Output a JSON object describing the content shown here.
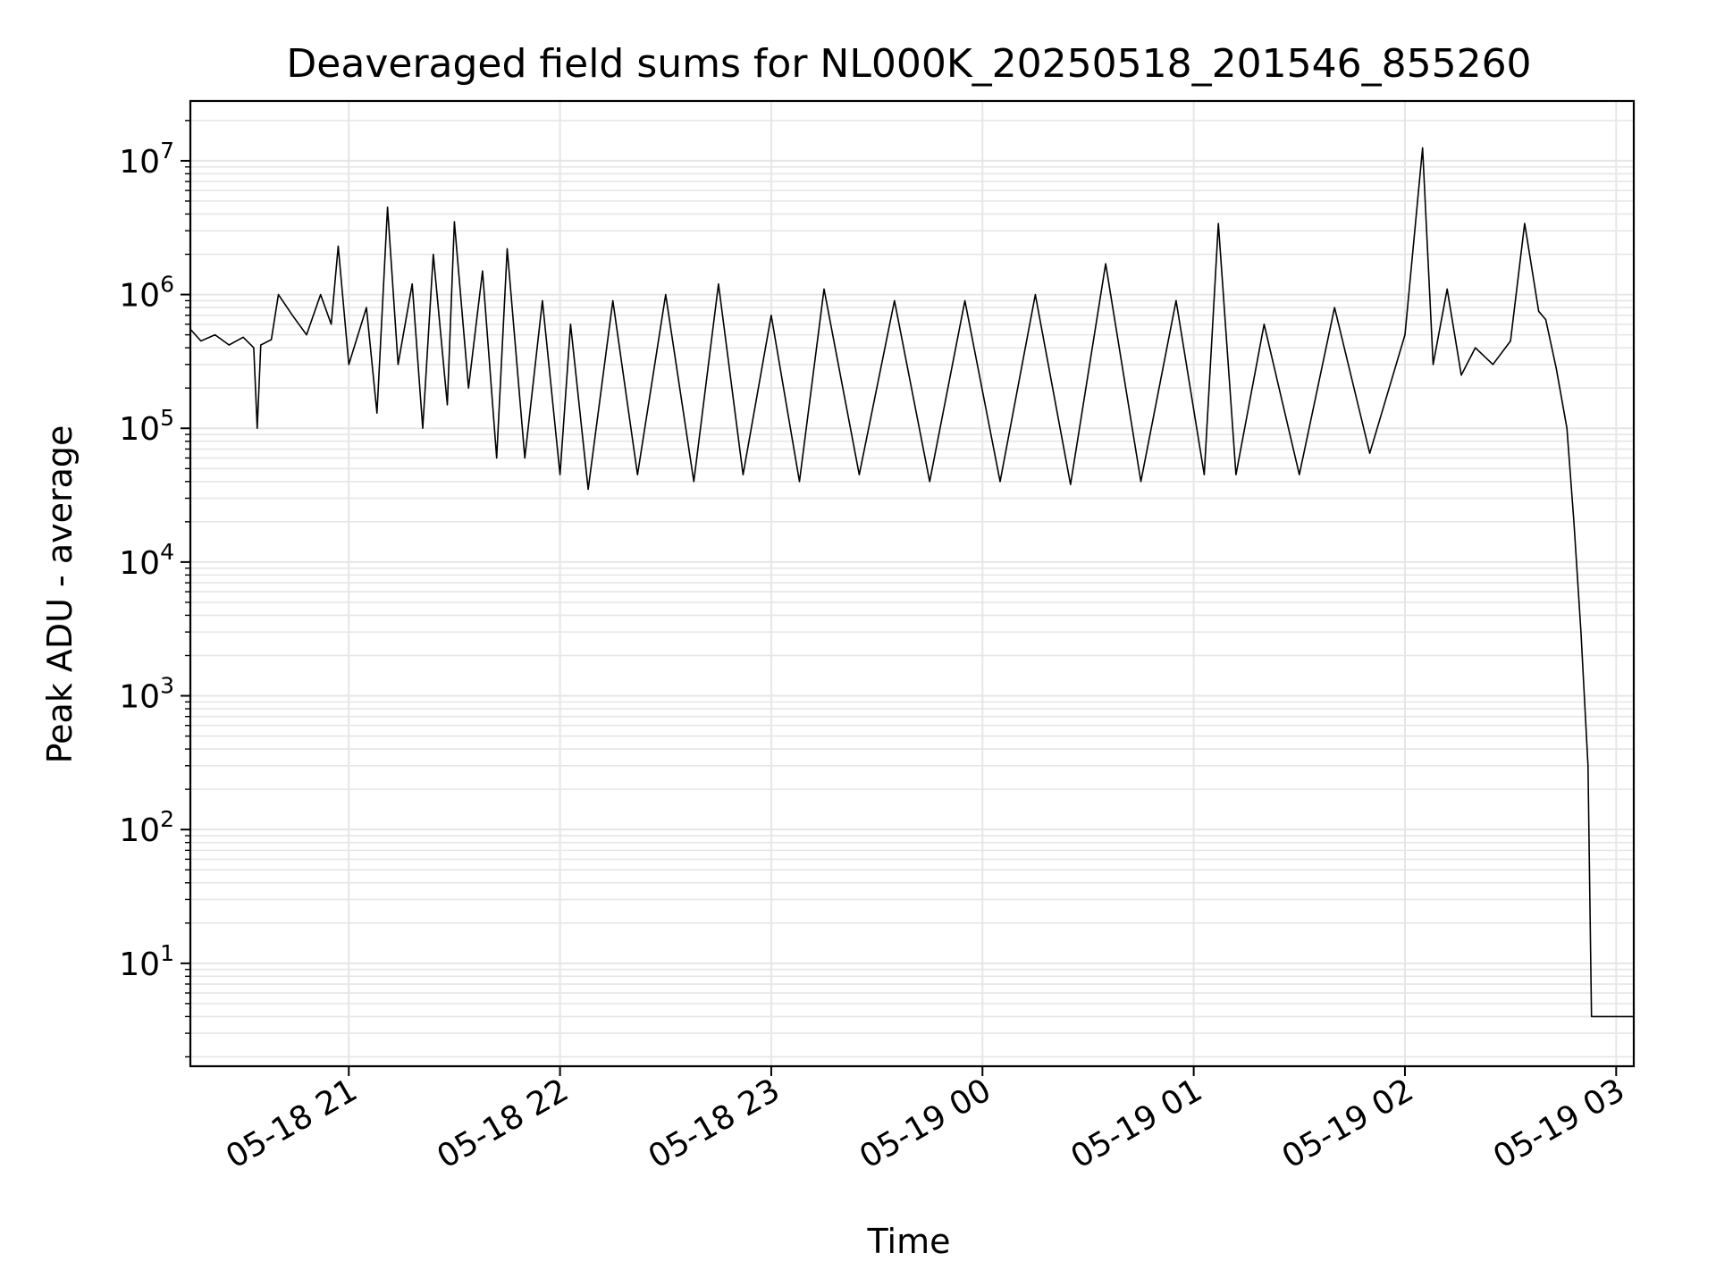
{
  "chart_data": {
    "type": "line",
    "title": "Deaveraged field sums for NL000K_20250518_201546_855260",
    "xlabel": "Time",
    "ylabel": "Peak ADU - average",
    "yscale": "log",
    "ylim": [
      1.7,
      28000000.0
    ],
    "xlim": [
      "2025-05-18 20:15",
      "2025-05-19 03:05"
    ],
    "grid": true,
    "line_color": "#000000",
    "grid_color": "#e6e6e6",
    "x_ticks": [
      {
        "t": "2025-05-18 21:00",
        "label": "05-18 21"
      },
      {
        "t": "2025-05-18 22:00",
        "label": "05-18 22"
      },
      {
        "t": "2025-05-18 23:00",
        "label": "05-18 23"
      },
      {
        "t": "2025-05-19 00:00",
        "label": "05-19 00"
      },
      {
        "t": "2025-05-19 01:00",
        "label": "05-19 01"
      },
      {
        "t": "2025-05-19 02:00",
        "label": "05-19 02"
      },
      {
        "t": "2025-05-19 03:00",
        "label": "05-19 03"
      }
    ],
    "y_ticks": [
      {
        "value": 10,
        "base": "10",
        "exp": "1"
      },
      {
        "value": 100,
        "base": "10",
        "exp": "2"
      },
      {
        "value": 1000,
        "base": "10",
        "exp": "3"
      },
      {
        "value": 10000,
        "base": "10",
        "exp": "4"
      },
      {
        "value": 100000,
        "base": "10",
        "exp": "5"
      },
      {
        "value": 1000000,
        "base": "10",
        "exp": "6"
      },
      {
        "value": 10000000,
        "base": "10",
        "exp": "7"
      }
    ],
    "series": [
      {
        "points": [
          [
            "2025-05-18 20:15",
            550000
          ],
          [
            "2025-05-18 20:18",
            450000
          ],
          [
            "2025-05-18 20:22",
            500000
          ],
          [
            "2025-05-18 20:26",
            420000
          ],
          [
            "2025-05-18 20:30",
            480000
          ],
          [
            "2025-05-18 20:33",
            400000
          ],
          [
            "2025-05-18 20:34",
            100000
          ],
          [
            "2025-05-18 20:35",
            420000
          ],
          [
            "2025-05-18 20:38",
            460000
          ],
          [
            "2025-05-18 20:40",
            1000000
          ],
          [
            "2025-05-18 20:44",
            700000
          ],
          [
            "2025-05-18 20:48",
            500000
          ],
          [
            "2025-05-18 20:52",
            1000000
          ],
          [
            "2025-05-18 20:55",
            600000
          ],
          [
            "2025-05-18 20:57",
            2300000
          ],
          [
            "2025-05-18 21:00",
            300000
          ],
          [
            "2025-05-18 21:05",
            800000
          ],
          [
            "2025-05-18 21:08",
            130000
          ],
          [
            "2025-05-18 21:11",
            4500000
          ],
          [
            "2025-05-18 21:14",
            300000
          ],
          [
            "2025-05-18 21:18",
            1200000
          ],
          [
            "2025-05-18 21:21",
            100000
          ],
          [
            "2025-05-18 21:24",
            2000000
          ],
          [
            "2025-05-18 21:28",
            150000
          ],
          [
            "2025-05-18 21:30",
            3500000
          ],
          [
            "2025-05-18 21:34",
            200000
          ],
          [
            "2025-05-18 21:38",
            1500000
          ],
          [
            "2025-05-18 21:42",
            60000
          ],
          [
            "2025-05-18 21:45",
            2200000
          ],
          [
            "2025-05-18 21:50",
            60000
          ],
          [
            "2025-05-18 21:55",
            900000
          ],
          [
            "2025-05-18 22:00",
            45000
          ],
          [
            "2025-05-18 22:03",
            600000
          ],
          [
            "2025-05-18 22:08",
            35000
          ],
          [
            "2025-05-18 22:15",
            900000
          ],
          [
            "2025-05-18 22:22",
            45000
          ],
          [
            "2025-05-18 22:30",
            1000000
          ],
          [
            "2025-05-18 22:38",
            40000
          ],
          [
            "2025-05-18 22:45",
            1200000
          ],
          [
            "2025-05-18 22:52",
            45000
          ],
          [
            "2025-05-18 23:00",
            700000
          ],
          [
            "2025-05-18 23:08",
            40000
          ],
          [
            "2025-05-18 23:15",
            1100000
          ],
          [
            "2025-05-18 23:25",
            45000
          ],
          [
            "2025-05-18 23:35",
            900000
          ],
          [
            "2025-05-18 23:45",
            40000
          ],
          [
            "2025-05-18 23:55",
            900000
          ],
          [
            "2025-05-19 00:05",
            40000
          ],
          [
            "2025-05-19 00:15",
            1000000
          ],
          [
            "2025-05-19 00:25",
            38000
          ],
          [
            "2025-05-19 00:35",
            1700000
          ],
          [
            "2025-05-19 00:45",
            40000
          ],
          [
            "2025-05-19 00:55",
            900000
          ],
          [
            "2025-05-19 01:03",
            45000
          ],
          [
            "2025-05-19 01:07",
            3400000
          ],
          [
            "2025-05-19 01:12",
            45000
          ],
          [
            "2025-05-19 01:20",
            600000
          ],
          [
            "2025-05-19 01:30",
            45000
          ],
          [
            "2025-05-19 01:40",
            800000
          ],
          [
            "2025-05-19 01:50",
            65000
          ],
          [
            "2025-05-19 02:00",
            500000
          ],
          [
            "2025-05-19 02:05",
            12500000
          ],
          [
            "2025-05-19 02:08",
            300000
          ],
          [
            "2025-05-19 02:12",
            1100000
          ],
          [
            "2025-05-19 02:16",
            250000
          ],
          [
            "2025-05-19 02:20",
            400000
          ],
          [
            "2025-05-19 02:25",
            300000
          ],
          [
            "2025-05-19 02:30",
            450000
          ],
          [
            "2025-05-19 02:34",
            3400000
          ],
          [
            "2025-05-19 02:38",
            750000
          ],
          [
            "2025-05-19 02:40",
            650000
          ],
          [
            "2025-05-19 02:43",
            280000
          ],
          [
            "2025-05-19 02:46",
            100000
          ],
          [
            "2025-05-19 02:48",
            20000
          ],
          [
            "2025-05-19 02:50",
            3000
          ],
          [
            "2025-05-19 02:52",
            300
          ],
          [
            "2025-05-19 02:53",
            4
          ],
          [
            "2025-05-19 03:05",
            4
          ]
        ]
      }
    ]
  }
}
